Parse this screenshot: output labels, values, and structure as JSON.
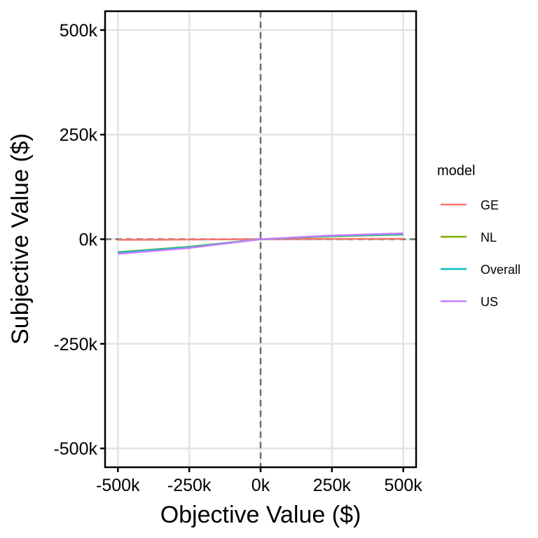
{
  "chart_data": {
    "type": "line",
    "xlabel": "Objective Value ($)",
    "ylabel": "Subjective Value ($)",
    "xlim": [
      -545000,
      545000
    ],
    "ylim": [
      -545000,
      545000
    ],
    "x_ticks": [
      -500000,
      -250000,
      0,
      250000,
      500000
    ],
    "x_tick_labels": [
      "-500k",
      "-250k",
      "0k",
      "250k",
      "500k"
    ],
    "y_ticks": [
      -500000,
      -250000,
      0,
      250000,
      500000
    ],
    "y_tick_labels": [
      "-500k",
      "-250k",
      "0k",
      "250k",
      "500k"
    ],
    "grid": true,
    "reference_lines": [
      {
        "orientation": "horizontal",
        "value": 0,
        "style": "dashed",
        "color": "#6e6e6e"
      },
      {
        "orientation": "vertical",
        "value": 0,
        "style": "dashed",
        "color": "#6e6e6e"
      }
    ],
    "legend": {
      "title": "model",
      "position": "right"
    },
    "series": [
      {
        "name": "GE",
        "color": "#F8766D",
        "x": [
          -500000,
          -250000,
          0,
          250000,
          500000
        ],
        "y": [
          -1500,
          -900,
          0,
          600,
          1000
        ]
      },
      {
        "name": "NL",
        "color": "#7CAE00",
        "x": [
          -500000,
          -250000,
          0,
          250000,
          500000
        ],
        "y": [
          -31000,
          -18000,
          0,
          7000,
          11000
        ]
      },
      {
        "name": "Overall",
        "color": "#00BFC4",
        "x": [
          -500000,
          -250000,
          0,
          250000,
          500000
        ],
        "y": [
          -32000,
          -19000,
          0,
          8000,
          12000
        ]
      },
      {
        "name": "US",
        "color": "#C77CFF",
        "x": [
          -500000,
          -250000,
          0,
          250000,
          500000
        ],
        "y": [
          -35000,
          -21000,
          0,
          9000,
          14000
        ]
      }
    ]
  }
}
